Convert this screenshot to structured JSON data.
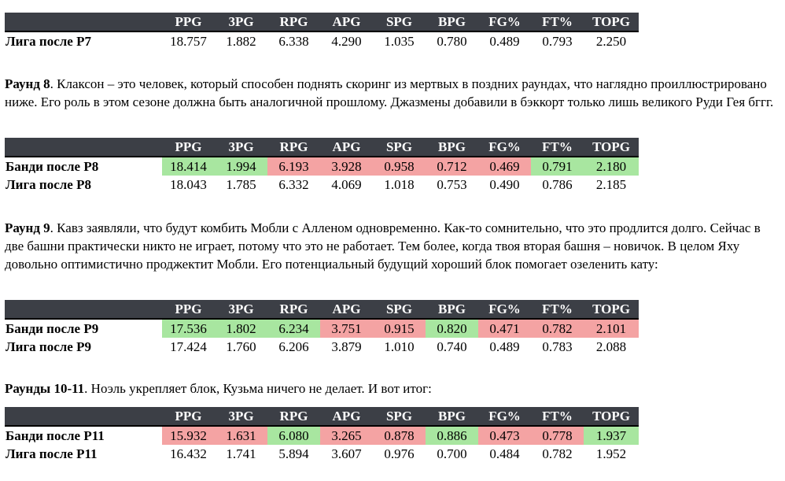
{
  "columns": [
    "PPG",
    "3PG",
    "RPG",
    "APG",
    "SPG",
    "BPG",
    "FG%",
    "FT%",
    "TOPG"
  ],
  "colors": {
    "header_bg": "#3c3f46",
    "good": "#a8e6a0",
    "bad": "#f4a3a3"
  },
  "table1": {
    "rows": [
      {
        "label": "Лига после Р7",
        "values": [
          "18.757",
          "1.882",
          "6.338",
          "4.290",
          "1.035",
          "0.780",
          "0.489",
          "0.793",
          "2.250"
        ],
        "marks": [
          "",
          "",
          "",
          "",
          "",
          "",
          "",
          "",
          ""
        ]
      }
    ]
  },
  "para1": {
    "bold": "Раунд 8",
    "text": ". Клаксон – это человек, который способен поднять скоринг из мертвых в поздних раундах, что наглядно проиллюстрировано ниже. Его роль в этом сезоне должна быть аналогичной прошлому. Джазмены добавили в бэккорт только лишь великого Руди Гея бггг."
  },
  "table2": {
    "rows": [
      {
        "label": "Банди после Р8",
        "values": [
          "18.414",
          "1.994",
          "6.193",
          "3.928",
          "0.958",
          "0.712",
          "0.469",
          "0.791",
          "2.180"
        ],
        "marks": [
          "g",
          "g",
          "r",
          "r",
          "r",
          "r",
          "r",
          "g",
          "g"
        ]
      },
      {
        "label": "Лига после Р8",
        "values": [
          "18.043",
          "1.785",
          "6.332",
          "4.069",
          "1.018",
          "0.753",
          "0.490",
          "0.786",
          "2.185"
        ],
        "marks": [
          "",
          "",
          "",
          "",
          "",
          "",
          "",
          "",
          ""
        ]
      }
    ]
  },
  "para2": {
    "bold": "Раунд 9",
    "text": ". Кавз заявляли, что будут комбить Мобли с Алленом одновременно. Как-то сомнительно, что это продлится долго. Сейчас в две башни практически никто не играет, потому что это не работает. Тем более, когда твоя вторая башня – новичок. В целом Яху довольно оптимистично проджектит Мобли. Его потенциальный будущий хороший блок помогает озеленить кату:"
  },
  "table3": {
    "rows": [
      {
        "label": "Банди после Р9",
        "values": [
          "17.536",
          "1.802",
          "6.234",
          "3.751",
          "0.915",
          "0.820",
          "0.471",
          "0.782",
          "2.101"
        ],
        "marks": [
          "g",
          "g",
          "g",
          "r",
          "r",
          "g",
          "r",
          "r",
          "r"
        ]
      },
      {
        "label": "Лига после Р9",
        "values": [
          "17.424",
          "1.760",
          "6.206",
          "3.879",
          "1.010",
          "0.740",
          "0.489",
          "0.783",
          "2.088"
        ],
        "marks": [
          "",
          "",
          "",
          "",
          "",
          "",
          "",
          "",
          ""
        ]
      }
    ]
  },
  "para3": {
    "bold": "Раунды 10-11",
    "text": ". Ноэль укрепляет блок, Кузьма ничего не делает. И вот итог:"
  },
  "table4": {
    "rows": [
      {
        "label": "Банди после Р11",
        "values": [
          "15.932",
          "1.631",
          "6.080",
          "3.265",
          "0.878",
          "0.886",
          "0.473",
          "0.778",
          "1.937"
        ],
        "marks": [
          "r",
          "r",
          "g",
          "r",
          "r",
          "g",
          "r",
          "r",
          "g"
        ]
      },
      {
        "label": "Лига после Р11",
        "values": [
          "16.432",
          "1.741",
          "5.894",
          "3.607",
          "0.976",
          "0.700",
          "0.484",
          "0.782",
          "1.952"
        ],
        "marks": [
          "",
          "",
          "",
          "",
          "",
          "",
          "",
          "",
          ""
        ]
      }
    ]
  }
}
